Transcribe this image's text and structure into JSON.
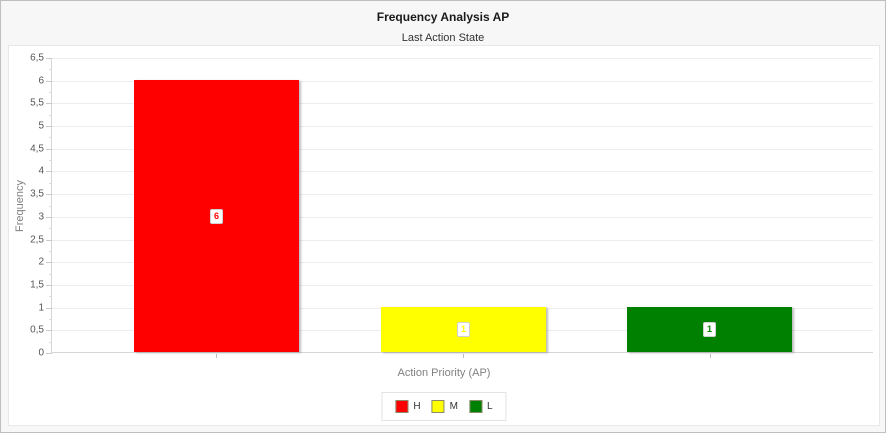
{
  "header": {
    "title": "Frequency Analysis AP",
    "subtitle": "Last Action State"
  },
  "chart_data": {
    "type": "bar",
    "title": "Frequency Analysis AP",
    "subtitle": "Last Action State",
    "categories": [
      "H",
      "M",
      "L"
    ],
    "values": [
      6,
      1,
      1
    ],
    "bar_labels": [
      "6",
      "1",
      "1"
    ],
    "series_colors": [
      "#ff0000",
      "#ffff00",
      "#008000"
    ],
    "xlabel": "Action Priority (AP)",
    "ylabel": "Frequency",
    "ylim": [
      0,
      6.5
    ],
    "ytick_step": 0.5,
    "ytick_labels": [
      "0",
      "0,5",
      "1",
      "1,5",
      "2",
      "2,5",
      "3",
      "3,5",
      "4",
      "4,5",
      "5",
      "5,5",
      "6",
      "6,5"
    ],
    "grid": true,
    "legend": {
      "position": "bottom",
      "items": [
        {
          "label": "H",
          "color": "#ff0000"
        },
        {
          "label": "M",
          "color": "#ffff00"
        },
        {
          "label": "L",
          "color": "#008000"
        }
      ]
    }
  }
}
